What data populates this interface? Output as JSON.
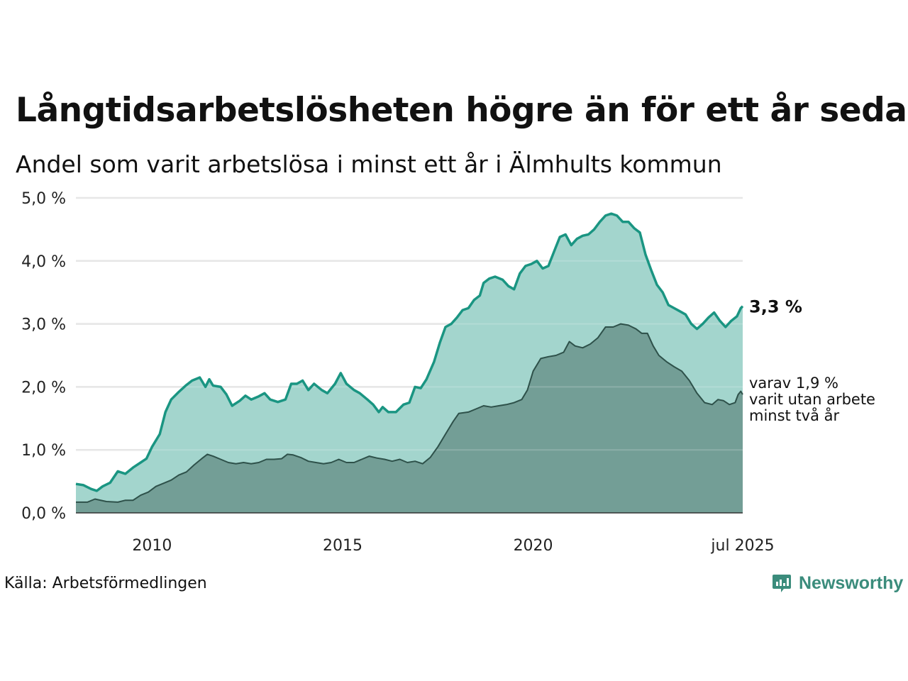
{
  "title": "Långtidsarbetslösheten högre än för ett år sedan",
  "subtitle": "Andel som varit arbetslösa i minst ett år i Älmhults kommun",
  "source": "Källa: Arbetsförmedlingen",
  "brand": "Newsworthy",
  "colors": {
    "series1_line": "#1a9582",
    "series1_fill": "#a3d5cd",
    "series2_line": "#2e514a",
    "series2_fill": "#739e96",
    "grid": "#e2e2e2",
    "brand": "#3b8c7c"
  },
  "chart_data": {
    "type": "area",
    "x_unit": "year",
    "x_range": [
      2008.0,
      2025.5
    ],
    "y_range": [
      0,
      5
    ],
    "y_ticks": [
      0,
      1,
      2,
      3,
      4,
      5
    ],
    "y_tick_labels": [
      "0,0 %",
      "1,0 %",
      "2,0 %",
      "3,0 %",
      "4,0 %",
      "5,0 %"
    ],
    "x_ticks": [
      2010,
      2015,
      2020,
      2025.5
    ],
    "x_tick_labels": [
      "2010",
      "2015",
      "2020",
      "jul 2025"
    ],
    "grid": "horizontal",
    "end_labels": {
      "total": "3,3 %",
      "subset": [
        "varav 1,9 %",
        "varit utan arbete",
        "minst två år"
      ]
    },
    "series": [
      {
        "key": "total",
        "points": [
          [
            2008.0,
            0.46
          ],
          [
            2008.2,
            0.44
          ],
          [
            2008.4,
            0.38
          ],
          [
            2008.55,
            0.35
          ],
          [
            2008.7,
            0.42
          ],
          [
            2008.9,
            0.48
          ],
          [
            2009.1,
            0.66
          ],
          [
            2009.3,
            0.62
          ],
          [
            2009.5,
            0.72
          ],
          [
            2009.7,
            0.8
          ],
          [
            2009.85,
            0.86
          ],
          [
            2010.0,
            1.05
          ],
          [
            2010.2,
            1.25
          ],
          [
            2010.35,
            1.6
          ],
          [
            2010.5,
            1.8
          ],
          [
            2010.7,
            1.92
          ],
          [
            2010.9,
            2.03
          ],
          [
            2011.05,
            2.1
          ],
          [
            2011.25,
            2.15
          ],
          [
            2011.4,
            2.0
          ],
          [
            2011.5,
            2.12
          ],
          [
            2011.6,
            2.02
          ],
          [
            2011.8,
            2.0
          ],
          [
            2011.95,
            1.88
          ],
          [
            2012.1,
            1.7
          ],
          [
            2012.3,
            1.78
          ],
          [
            2012.45,
            1.86
          ],
          [
            2012.6,
            1.8
          ],
          [
            2012.8,
            1.85
          ],
          [
            2012.95,
            1.9
          ],
          [
            2013.1,
            1.8
          ],
          [
            2013.3,
            1.76
          ],
          [
            2013.5,
            1.8
          ],
          [
            2013.65,
            2.05
          ],
          [
            2013.8,
            2.05
          ],
          [
            2013.95,
            2.1
          ],
          [
            2014.1,
            1.95
          ],
          [
            2014.25,
            2.05
          ],
          [
            2014.45,
            1.95
          ],
          [
            2014.6,
            1.9
          ],
          [
            2014.8,
            2.05
          ],
          [
            2014.95,
            2.22
          ],
          [
            2015.1,
            2.05
          ],
          [
            2015.3,
            1.95
          ],
          [
            2015.45,
            1.9
          ],
          [
            2015.65,
            1.8
          ],
          [
            2015.8,
            1.72
          ],
          [
            2015.95,
            1.6
          ],
          [
            2016.05,
            1.68
          ],
          [
            2016.2,
            1.6
          ],
          [
            2016.4,
            1.6
          ],
          [
            2016.6,
            1.72
          ],
          [
            2016.75,
            1.75
          ],
          [
            2016.9,
            2.0
          ],
          [
            2017.05,
            1.98
          ],
          [
            2017.2,
            2.12
          ],
          [
            2017.4,
            2.4
          ],
          [
            2017.55,
            2.7
          ],
          [
            2017.7,
            2.95
          ],
          [
            2017.85,
            3.0
          ],
          [
            2018.0,
            3.1
          ],
          [
            2018.15,
            3.22
          ],
          [
            2018.3,
            3.25
          ],
          [
            2018.45,
            3.38
          ],
          [
            2018.6,
            3.45
          ],
          [
            2018.7,
            3.65
          ],
          [
            2018.85,
            3.72
          ],
          [
            2019.0,
            3.75
          ],
          [
            2019.2,
            3.7
          ],
          [
            2019.35,
            3.6
          ],
          [
            2019.5,
            3.55
          ],
          [
            2019.65,
            3.8
          ],
          [
            2019.8,
            3.92
          ],
          [
            2019.95,
            3.95
          ],
          [
            2020.1,
            4.0
          ],
          [
            2020.25,
            3.88
          ],
          [
            2020.4,
            3.92
          ],
          [
            2020.55,
            4.15
          ],
          [
            2020.7,
            4.38
          ],
          [
            2020.85,
            4.42
          ],
          [
            2021.0,
            4.25
          ],
          [
            2021.15,
            4.35
          ],
          [
            2021.3,
            4.4
          ],
          [
            2021.45,
            4.42
          ],
          [
            2021.6,
            4.5
          ],
          [
            2021.75,
            4.62
          ],
          [
            2021.9,
            4.72
          ],
          [
            2022.05,
            4.75
          ],
          [
            2022.2,
            4.72
          ],
          [
            2022.35,
            4.62
          ],
          [
            2022.5,
            4.62
          ],
          [
            2022.65,
            4.52
          ],
          [
            2022.8,
            4.45
          ],
          [
            2022.95,
            4.1
          ],
          [
            2023.1,
            3.85
          ],
          [
            2023.25,
            3.62
          ],
          [
            2023.4,
            3.5
          ],
          [
            2023.55,
            3.3
          ],
          [
            2023.7,
            3.25
          ],
          [
            2023.85,
            3.2
          ],
          [
            2024.0,
            3.15
          ],
          [
            2024.15,
            3.0
          ],
          [
            2024.3,
            2.92
          ],
          [
            2024.45,
            3.0
          ],
          [
            2024.6,
            3.1
          ],
          [
            2024.75,
            3.18
          ],
          [
            2024.9,
            3.05
          ],
          [
            2025.05,
            2.95
          ],
          [
            2025.2,
            3.05
          ],
          [
            2025.35,
            3.12
          ],
          [
            2025.45,
            3.25
          ],
          [
            2025.5,
            3.28
          ]
        ]
      },
      {
        "key": "subset",
        "points": [
          [
            2008.0,
            0.17
          ],
          [
            2008.3,
            0.17
          ],
          [
            2008.5,
            0.22
          ],
          [
            2008.8,
            0.18
          ],
          [
            2009.1,
            0.17
          ],
          [
            2009.3,
            0.2
          ],
          [
            2009.5,
            0.2
          ],
          [
            2009.7,
            0.28
          ],
          [
            2009.9,
            0.33
          ],
          [
            2010.1,
            0.42
          ],
          [
            2010.3,
            0.47
          ],
          [
            2010.5,
            0.52
          ],
          [
            2010.7,
            0.6
          ],
          [
            2010.9,
            0.65
          ],
          [
            2011.1,
            0.76
          ],
          [
            2011.3,
            0.86
          ],
          [
            2011.45,
            0.93
          ],
          [
            2011.6,
            0.9
          ],
          [
            2011.8,
            0.85
          ],
          [
            2012.0,
            0.8
          ],
          [
            2012.2,
            0.78
          ],
          [
            2012.4,
            0.8
          ],
          [
            2012.6,
            0.78
          ],
          [
            2012.8,
            0.8
          ],
          [
            2013.0,
            0.85
          ],
          [
            2013.2,
            0.85
          ],
          [
            2013.4,
            0.86
          ],
          [
            2013.55,
            0.93
          ],
          [
            2013.7,
            0.92
          ],
          [
            2013.9,
            0.88
          ],
          [
            2014.1,
            0.82
          ],
          [
            2014.3,
            0.8
          ],
          [
            2014.5,
            0.78
          ],
          [
            2014.7,
            0.8
          ],
          [
            2014.9,
            0.85
          ],
          [
            2015.1,
            0.8
          ],
          [
            2015.3,
            0.8
          ],
          [
            2015.5,
            0.85
          ],
          [
            2015.7,
            0.9
          ],
          [
            2015.9,
            0.87
          ],
          [
            2016.1,
            0.85
          ],
          [
            2016.3,
            0.82
          ],
          [
            2016.5,
            0.85
          ],
          [
            2016.7,
            0.8
          ],
          [
            2016.9,
            0.82
          ],
          [
            2017.1,
            0.78
          ],
          [
            2017.3,
            0.88
          ],
          [
            2017.5,
            1.05
          ],
          [
            2017.7,
            1.25
          ],
          [
            2017.9,
            1.45
          ],
          [
            2018.05,
            1.58
          ],
          [
            2018.3,
            1.6
          ],
          [
            2018.5,
            1.65
          ],
          [
            2018.7,
            1.7
          ],
          [
            2018.9,
            1.68
          ],
          [
            2019.1,
            1.7
          ],
          [
            2019.3,
            1.72
          ],
          [
            2019.5,
            1.75
          ],
          [
            2019.7,
            1.8
          ],
          [
            2019.85,
            1.95
          ],
          [
            2020.0,
            2.25
          ],
          [
            2020.2,
            2.45
          ],
          [
            2020.4,
            2.48
          ],
          [
            2020.6,
            2.5
          ],
          [
            2020.8,
            2.55
          ],
          [
            2020.95,
            2.72
          ],
          [
            2021.1,
            2.65
          ],
          [
            2021.3,
            2.62
          ],
          [
            2021.5,
            2.68
          ],
          [
            2021.7,
            2.78
          ],
          [
            2021.9,
            2.95
          ],
          [
            2022.1,
            2.95
          ],
          [
            2022.3,
            3.0
          ],
          [
            2022.5,
            2.98
          ],
          [
            2022.7,
            2.92
          ],
          [
            2022.85,
            2.85
          ],
          [
            2023.0,
            2.85
          ],
          [
            2023.15,
            2.65
          ],
          [
            2023.3,
            2.5
          ],
          [
            2023.5,
            2.4
          ],
          [
            2023.7,
            2.32
          ],
          [
            2023.9,
            2.25
          ],
          [
            2024.1,
            2.1
          ],
          [
            2024.3,
            1.9
          ],
          [
            2024.5,
            1.75
          ],
          [
            2024.7,
            1.72
          ],
          [
            2024.85,
            1.8
          ],
          [
            2025.0,
            1.78
          ],
          [
            2025.15,
            1.72
          ],
          [
            2025.3,
            1.75
          ],
          [
            2025.38,
            1.88
          ],
          [
            2025.45,
            1.93
          ],
          [
            2025.5,
            1.88
          ]
        ]
      }
    ]
  }
}
